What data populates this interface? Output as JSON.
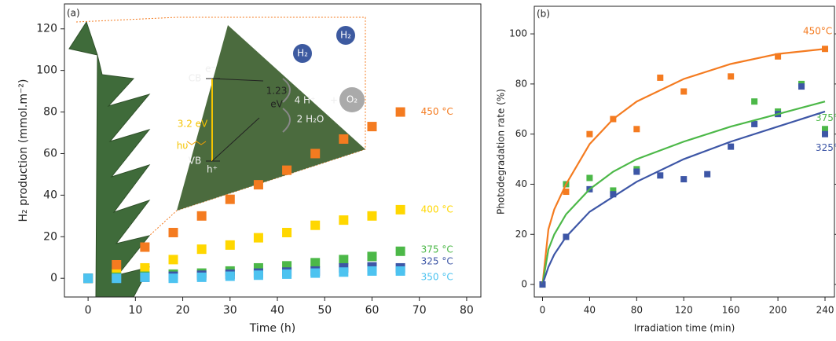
{
  "chart_data": [
    {
      "type": "scatter",
      "panel_label": "(a)",
      "x_label": "Time (h)",
      "y_label": "H₂ production (mmol.m⁻²)",
      "xlim": [
        -5,
        83
      ],
      "ylim": [
        -9,
        132
      ],
      "xticks": [
        0,
        10,
        20,
        30,
        40,
        50,
        60,
        70,
        80
      ],
      "yticks": [
        0,
        20,
        40,
        60,
        80,
        100,
        120
      ],
      "x": [
        0,
        6,
        12,
        18,
        24,
        30,
        36,
        42,
        48,
        54,
        60,
        66
      ],
      "series": [
        {
          "name": "450 °C",
          "color": "#f47b20",
          "values": [
            0,
            6.5,
            15,
            22,
            30,
            38,
            45,
            52,
            60,
            67,
            73,
            80
          ]
        },
        {
          "name": "400 °C",
          "color": "#ffd700",
          "values": [
            0,
            2,
            5,
            9,
            14,
            16,
            19.5,
            22,
            25.5,
            28,
            30,
            33
          ]
        },
        {
          "name": "375 °C",
          "color": "#4cb848",
          "values": [
            0,
            0.5,
            1,
            2,
            2.5,
            3.5,
            5,
            6,
            7.5,
            9,
            10.5,
            13
          ]
        },
        {
          "name": "325 °C",
          "color": "#3d56a6",
          "values": [
            0,
            0,
            0.5,
            1,
            1.5,
            2,
            2.5,
            3,
            3.5,
            5,
            5.5,
            5
          ]
        },
        {
          "name": "350 °C",
          "color": "#4dc3f0",
          "values": [
            0,
            0,
            0.5,
            0,
            0.5,
            1,
            1.5,
            2,
            2.5,
            3,
            3.5,
            3.5
          ]
        }
      ],
      "inset_labels": [
        "CB",
        "e⁻",
        "VB",
        "h⁺",
        "3.2 eV",
        "hυ",
        "1.23",
        "eV",
        "4 H⁺",
        "+",
        "2 H₂O",
        "H₂",
        "H₂",
        "O₂"
      ]
    },
    {
      "type": "scatter",
      "panel_label": "(b)",
      "x_label": "Irradiation time (min)",
      "y_label": "Photodegradation rate (%)",
      "xlim": [
        -7,
        248
      ],
      "ylim": [
        -5,
        111
      ],
      "xticks": [
        0,
        40,
        80,
        120,
        160,
        200,
        240
      ],
      "yticks": [
        0,
        20,
        40,
        60,
        80,
        100
      ],
      "series": [
        {
          "name": "450°C",
          "color": "#f47b20",
          "x": [
            0,
            20,
            40,
            60,
            80,
            100,
            120,
            160,
            200,
            240
          ],
          "values": [
            0,
            37,
            60,
            66,
            62,
            82.5,
            77,
            83,
            91,
            94
          ]
        },
        {
          "name": "375°C",
          "color": "#4cb848",
          "x": [
            0,
            20,
            40,
            60,
            80,
            180,
            200,
            220,
            240
          ],
          "values": [
            0,
            40,
            42.5,
            37.5,
            46,
            73,
            69,
            80,
            62
          ]
        },
        {
          "name": "325°C",
          "color": "#3d56a6",
          "x": [
            0,
            20,
            40,
            60,
            80,
            100,
            120,
            140,
            160,
            180,
            200,
            220,
            240
          ],
          "values": [
            0,
            19,
            38,
            36,
            45,
            43.5,
            42,
            44,
            55,
            64,
            68,
            79,
            60
          ]
        },
        {
          "style": "line",
          "color": "#f47b20",
          "x": [
            0,
            5,
            10,
            20,
            40,
            60,
            80,
            120,
            160,
            200,
            240
          ],
          "values": [
            0,
            22,
            30,
            40,
            56,
            66,
            73,
            82,
            88,
            92,
            94
          ]
        },
        {
          "style": "line",
          "color": "#4cb848",
          "x": [
            0,
            5,
            10,
            20,
            40,
            60,
            80,
            120,
            160,
            200,
            240
          ],
          "values": [
            0,
            14,
            20,
            28,
            38,
            45,
            50,
            57,
            63,
            68,
            73
          ]
        },
        {
          "style": "line",
          "color": "#3d56a6",
          "x": [
            0,
            5,
            10,
            20,
            40,
            60,
            80,
            120,
            160,
            200,
            240
          ],
          "values": [
            0,
            7,
            12,
            19,
            29,
            35,
            41,
            50,
            57,
            63,
            69
          ]
        }
      ]
    }
  ]
}
